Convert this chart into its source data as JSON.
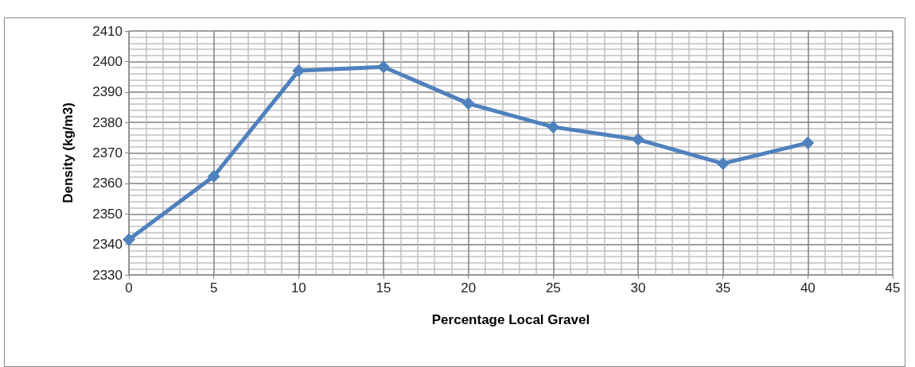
{
  "chart_data": {
    "type": "line",
    "xlabel": "Percentage Local Gravel",
    "ylabel": "Density (kg/m3)",
    "x": [
      0,
      5,
      10,
      15,
      20,
      25,
      30,
      35,
      40
    ],
    "series": [
      {
        "color": "#4f81bd",
        "values": [
          2341.6,
          2362.3,
          2397.0,
          2398.2,
          2386.2,
          2378.5,
          2374.4,
          2366.5,
          2373.3
        ]
      }
    ],
    "xlim": [
      0,
      45
    ],
    "xticks": [
      0,
      5,
      10,
      15,
      20,
      25,
      30,
      35,
      40,
      45
    ],
    "ylim": [
      2330,
      2410
    ],
    "yticks": [
      2330,
      2340,
      2350,
      2360,
      2370,
      2380,
      2390,
      2400,
      2410
    ],
    "grid": true,
    "marker": "diamond",
    "line_style": "solid"
  }
}
